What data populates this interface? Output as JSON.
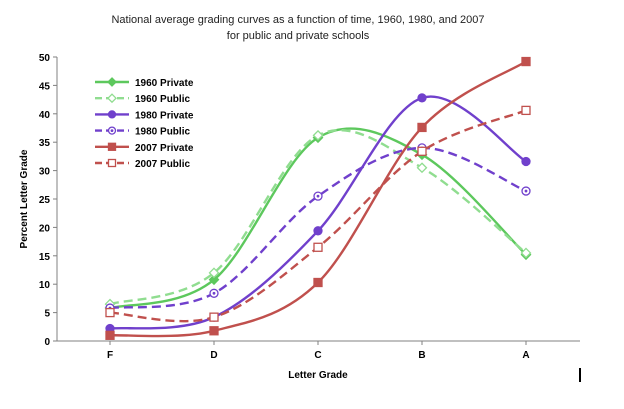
{
  "chart_data": {
    "type": "line",
    "title": "National average grading curves as a function of time, 1960, 1980, and 2007",
    "subtitle": "for public and private schools",
    "xlabel": "Letter Grade",
    "ylabel": "Percent Letter Grade",
    "categories": [
      "F",
      "D",
      "C",
      "B",
      "A"
    ],
    "ylim": [
      0,
      50
    ],
    "yticks": [
      0,
      5,
      10,
      15,
      20,
      25,
      30,
      35,
      40,
      45,
      50
    ],
    "grid": false,
    "legend_position": "top-left",
    "series": [
      {
        "name": "1960 Private",
        "values": [
          5.8,
          10.8,
          35.8,
          32.8,
          15.2
        ],
        "color": "#5dc85d",
        "dash": "solid",
        "marker": "diamond-filled"
      },
      {
        "name": "1960 Public",
        "values": [
          6.5,
          12.0,
          36.2,
          30.5,
          15.5
        ],
        "color": "#90dd90",
        "dash": "dashed",
        "marker": "diamond-open"
      },
      {
        "name": "1980 Private",
        "values": [
          2.2,
          4.2,
          19.4,
          42.8,
          31.6
        ],
        "color": "#7040cc",
        "dash": "solid",
        "marker": "circle-filled"
      },
      {
        "name": "1980 Public",
        "values": [
          5.8,
          8.4,
          25.5,
          34.0,
          26.4
        ],
        "color": "#7040cc",
        "dash": "dashed",
        "marker": "circle-open"
      },
      {
        "name": "2007 Private",
        "values": [
          1.0,
          1.8,
          10.3,
          37.6,
          49.2
        ],
        "color": "#c0504d",
        "dash": "solid",
        "marker": "square-filled"
      },
      {
        "name": "2007 Public",
        "values": [
          5.0,
          4.2,
          16.5,
          33.4,
          40.6
        ],
        "color": "#c0504d",
        "dash": "dashed",
        "marker": "square-open"
      }
    ]
  }
}
